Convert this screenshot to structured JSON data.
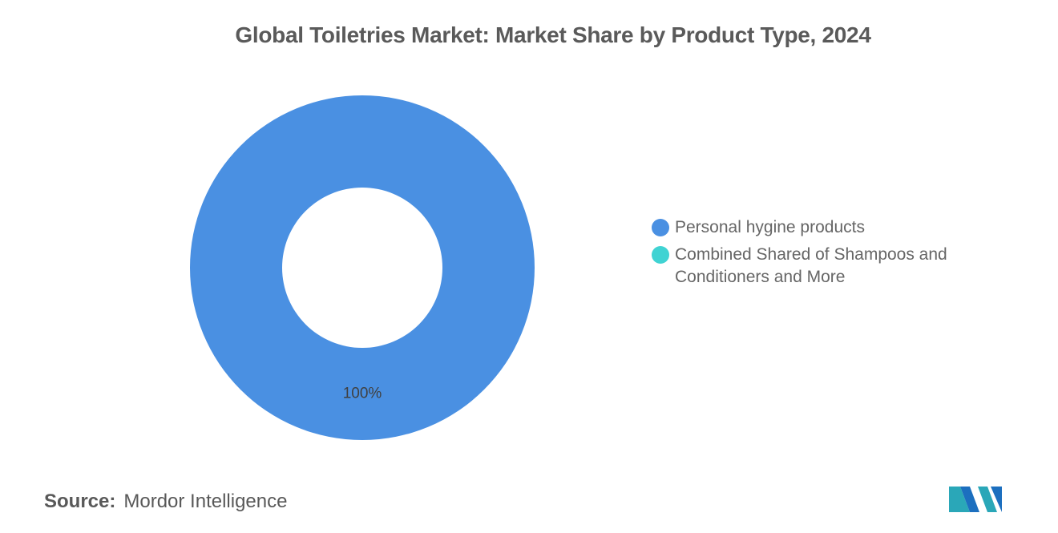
{
  "title": "Global Toiletries Market: Market Share by Product Type, 2024",
  "source": {
    "label": "Source:",
    "value": "Mordor Intelligence"
  },
  "logo": {
    "icon": "mordor-intelligence-logo",
    "colors": [
      "#2aa7b8",
      "#1c6fbf"
    ]
  },
  "chart_data": {
    "type": "pie",
    "donut": true,
    "title": "Global Toiletries Market: Market Share by Product Type, 2024",
    "series": [
      {
        "name": "Personal hygine products",
        "value": 100,
        "label": "100%",
        "color": "#4a90e2"
      },
      {
        "name": "Combined Shared of Shampoos and Conditioners and More",
        "value": 0,
        "label": "",
        "color": "#40d3d3"
      }
    ],
    "legend_position": "right"
  }
}
